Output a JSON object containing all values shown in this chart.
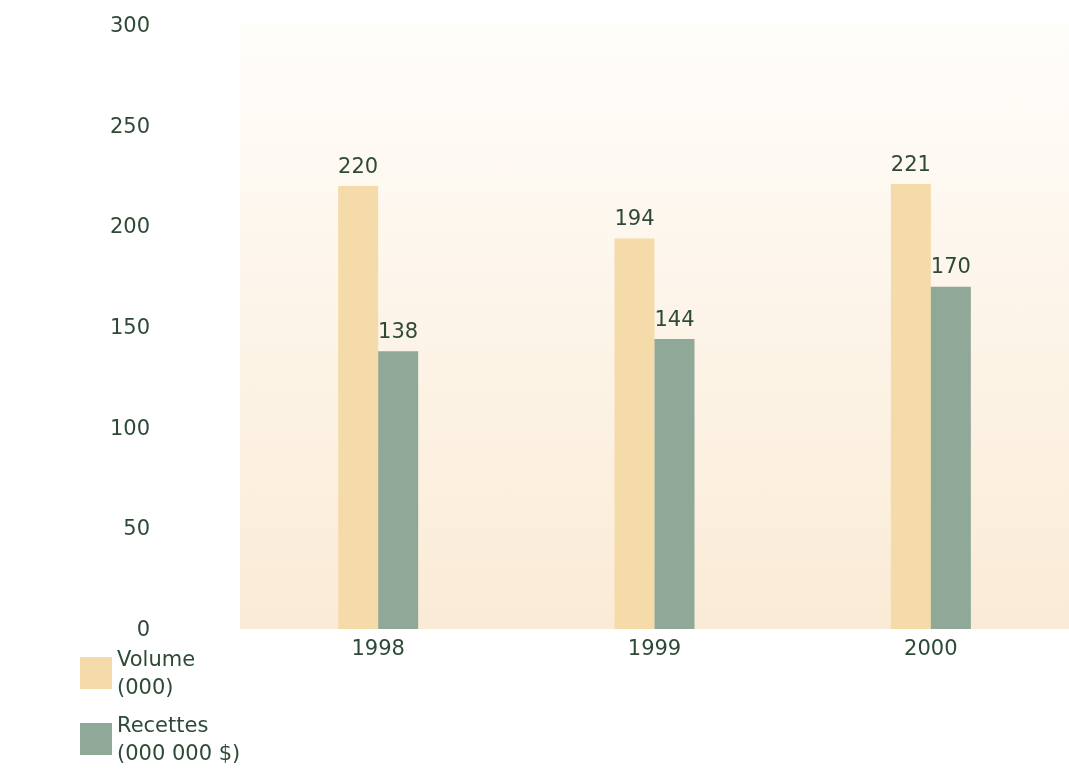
{
  "chart_data": {
    "type": "bar",
    "categories": [
      "1998",
      "1999",
      "2000"
    ],
    "series": [
      {
        "name": "Volume (000)",
        "color": "#f5dba9",
        "values": [
          220,
          194,
          221
        ]
      },
      {
        "name": "Recettes (000 000 $)",
        "color": "#8fa898",
        "values": [
          138,
          144,
          170
        ]
      }
    ],
    "ylim": [
      0,
      300
    ],
    "yticks": [
      0,
      50,
      100,
      150,
      200,
      250,
      300
    ],
    "data_labels": true,
    "grid": false,
    "legend": "bottom left"
  }
}
